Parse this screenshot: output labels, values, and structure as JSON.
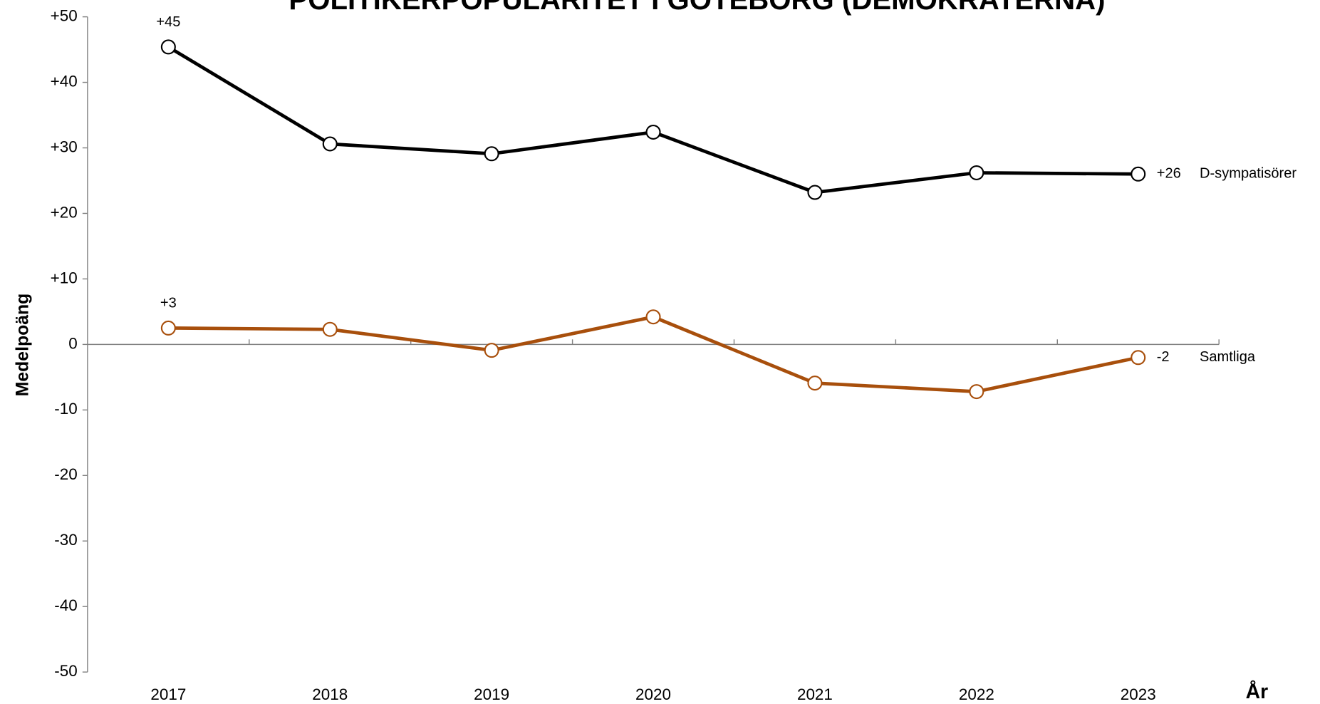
{
  "chart_data": {
    "type": "line",
    "title": "POLITIKERPOPULARITET I GÖTEBORG (DEMOKRATERNA)",
    "y_label": "Medelpoäng",
    "x_label": "År",
    "categories": [
      "2017",
      "2018",
      "2019",
      "2020",
      "2021",
      "2022",
      "2023"
    ],
    "series": [
      {
        "name": "D-sympatisörer",
        "color": "#000000",
        "values": [
          45.4,
          30.6,
          29.1,
          32.4,
          23.2,
          26.2,
          26.0
        ],
        "value_labels": [
          "+45",
          null,
          null,
          null,
          null,
          null,
          "+26"
        ]
      },
      {
        "name": "Samtliga",
        "color": "#a84f0c",
        "values": [
          2.5,
          2.3,
          -0.9,
          4.2,
          -5.9,
          -7.2,
          -2.0
        ],
        "value_labels": [
          "+3",
          null,
          null,
          null,
          null,
          null,
          "-2"
        ]
      }
    ],
    "ylim": [
      -50,
      50
    ],
    "yticks": [
      {
        "value": 50,
        "label": "+50"
      },
      {
        "value": 40,
        "label": "+40"
      },
      {
        "value": 30,
        "label": "+30"
      },
      {
        "value": 20,
        "label": "+20"
      },
      {
        "value": 10,
        "label": "+10"
      },
      0,
      -10,
      -20,
      -30,
      -40,
      -50
    ],
    "grid": false
  }
}
